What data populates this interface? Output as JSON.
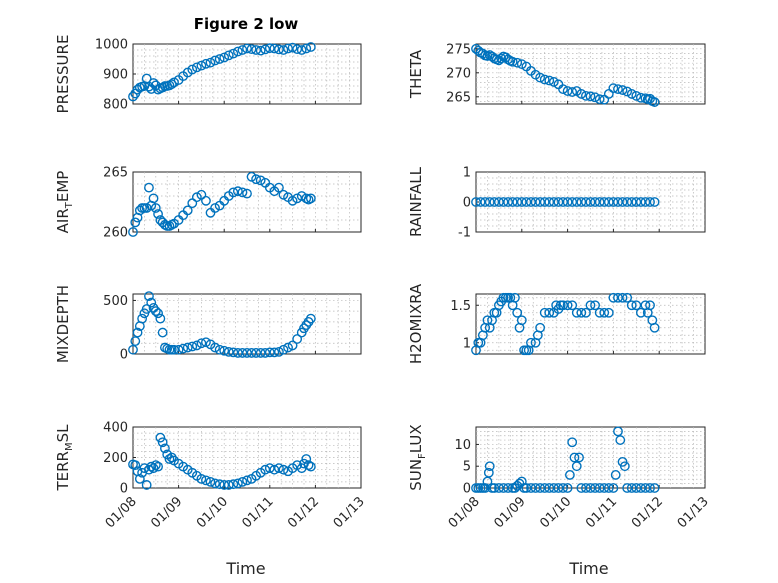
{
  "figure": {
    "title": "Figure 2 low",
    "marker_color": "#0072BD",
    "x_tick_labels": [
      "01/08",
      "01/09",
      "01/10",
      "01/11",
      "01/12",
      "01/13"
    ],
    "xlabel": "Time"
  },
  "chart_data": [
    {
      "id": "pressure",
      "type": "scatter",
      "ylabel": "PRESSURE",
      "xlim": [
        "01/08",
        "01/13"
      ],
      "ylim": [
        800,
        1000
      ],
      "yticks": [
        800,
        900,
        1000
      ],
      "grid": true,
      "x_days": [
        0.0,
        0.05,
        0.1,
        0.15,
        0.2,
        0.25,
        0.3,
        0.35,
        0.4,
        0.45,
        0.5,
        0.55,
        0.6,
        0.65,
        0.7,
        0.75,
        0.8,
        0.85,
        0.9,
        1.0,
        1.1,
        1.2,
        1.3,
        1.4,
        1.5,
        1.6,
        1.7,
        1.8,
        1.9,
        2.0,
        2.1,
        2.2,
        2.3,
        2.4,
        2.5,
        2.6,
        2.7,
        2.8,
        2.9,
        3.0,
        3.1,
        3.2,
        3.3,
        3.4,
        3.5,
        3.6,
        3.7,
        3.8,
        3.9
      ],
      "values": [
        825,
        835,
        848,
        855,
        858,
        860,
        885,
        858,
        850,
        870,
        862,
        848,
        852,
        855,
        860,
        860,
        862,
        866,
        872,
        880,
        893,
        905,
        915,
        922,
        928,
        934,
        938,
        945,
        950,
        955,
        962,
        968,
        975,
        980,
        985,
        983,
        980,
        978,
        982,
        986,
        985,
        982,
        980,
        985,
        988,
        983,
        980,
        985,
        990
      ]
    },
    {
      "id": "theta",
      "type": "scatter",
      "ylabel": "THETA",
      "xlim": [
        "01/08",
        "01/13"
      ],
      "ylim": [
        263.5,
        276
      ],
      "yticks": [
        265,
        270,
        275
      ],
      "grid": true,
      "x_days": [
        0.0,
        0.05,
        0.1,
        0.15,
        0.2,
        0.25,
        0.3,
        0.35,
        0.4,
        0.45,
        0.5,
        0.55,
        0.6,
        0.65,
        0.7,
        0.75,
        0.8,
        0.9,
        1.0,
        1.1,
        1.2,
        1.3,
        1.4,
        1.5,
        1.6,
        1.7,
        1.8,
        1.9,
        2.0,
        2.1,
        2.2,
        2.3,
        2.4,
        2.5,
        2.6,
        2.7,
        2.8,
        2.9,
        3.0,
        3.1,
        3.2,
        3.3,
        3.4,
        3.5,
        3.6,
        3.7,
        3.75,
        3.8,
        3.85,
        3.9
      ],
      "values": [
        275,
        274.6,
        274.2,
        274,
        273.6,
        273.5,
        273.7,
        273.4,
        273,
        272.8,
        272.6,
        273,
        273.4,
        273.2,
        272.8,
        272.5,
        272.3,
        272.1,
        271.8,
        271.3,
        270.4,
        269.6,
        269,
        268.6,
        268.4,
        268.1,
        267.6,
        266.6,
        266.2,
        266,
        266.2,
        265.6,
        265.2,
        265.1,
        264.9,
        264.5,
        264.4,
        265.6,
        266.8,
        266.6,
        266.4,
        266.1,
        265.6,
        265.2,
        264.8,
        264.7,
        264.5,
        264.6,
        264.1,
        263.9
      ]
    },
    {
      "id": "air_temp",
      "type": "scatter",
      "ylabel": "AIR_TEMP",
      "xlim": [
        "01/08",
        "01/13"
      ],
      "ylim": [
        260,
        265
      ],
      "yticks": [
        260,
        265
      ],
      "grid": true,
      "x_days": [
        0.0,
        0.05,
        0.1,
        0.15,
        0.2,
        0.25,
        0.3,
        0.35,
        0.4,
        0.45,
        0.5,
        0.55,
        0.6,
        0.65,
        0.7,
        0.75,
        0.8,
        0.85,
        0.9,
        1.0,
        1.1,
        1.2,
        1.3,
        1.4,
        1.5,
        1.6,
        1.7,
        1.8,
        1.9,
        2.0,
        2.1,
        2.2,
        2.3,
        2.4,
        2.5,
        2.6,
        2.7,
        2.8,
        2.9,
        3.0,
        3.1,
        3.2,
        3.3,
        3.4,
        3.5,
        3.6,
        3.7,
        3.8,
        3.85,
        3.9
      ],
      "values": [
        260,
        260.8,
        261.2,
        261.8,
        262,
        262,
        262,
        263.7,
        262.2,
        262.8,
        262,
        261.5,
        261,
        260.8,
        260.6,
        260.5,
        260.5,
        260.6,
        260.7,
        261,
        261.4,
        261.8,
        262.4,
        262.9,
        263.1,
        262.6,
        261.6,
        262,
        262.2,
        262.6,
        263,
        263.3,
        263.4,
        263.3,
        263.2,
        264.6,
        264.4,
        264.3,
        264.1,
        263.7,
        263.4,
        263.7,
        263.1,
        262.9,
        262.6,
        262.8,
        263,
        262.8,
        262.7,
        262.8
      ]
    },
    {
      "id": "rainfall",
      "type": "scatter",
      "ylabel": "RAINFALL",
      "xlim": [
        "01/08",
        "01/13"
      ],
      "ylim": [
        -1,
        1
      ],
      "yticks": [
        -1,
        0,
        1
      ],
      "grid": true,
      "x_days": [
        0.0,
        0.1,
        0.2,
        0.3,
        0.4,
        0.5,
        0.6,
        0.7,
        0.8,
        0.9,
        1.0,
        1.1,
        1.2,
        1.3,
        1.4,
        1.5,
        1.6,
        1.7,
        1.8,
        1.9,
        2.0,
        2.1,
        2.2,
        2.3,
        2.4,
        2.5,
        2.6,
        2.7,
        2.8,
        2.9,
        3.0,
        3.1,
        3.2,
        3.3,
        3.4,
        3.5,
        3.6,
        3.7,
        3.8,
        3.9
      ],
      "values": [
        0,
        0,
        0,
        0,
        0,
        0,
        0,
        0,
        0,
        0,
        0,
        0,
        0,
        0,
        0,
        0,
        0,
        0,
        0,
        0,
        0,
        0,
        0,
        0,
        0,
        0,
        0,
        0,
        0,
        0,
        0,
        0,
        0,
        0,
        0,
        0,
        0,
        0,
        0,
        0
      ]
    },
    {
      "id": "mixdepth",
      "type": "scatter",
      "ylabel": "MIXDEPTH",
      "xlim": [
        "01/08",
        "01/13"
      ],
      "ylim": [
        0,
        560
      ],
      "yticks": [
        0,
        500
      ],
      "grid": true,
      "x_days": [
        0.0,
        0.05,
        0.1,
        0.15,
        0.2,
        0.25,
        0.3,
        0.35,
        0.4,
        0.45,
        0.5,
        0.55,
        0.6,
        0.65,
        0.7,
        0.75,
        0.8,
        0.85,
        0.9,
        1.0,
        1.1,
        1.2,
        1.3,
        1.4,
        1.5,
        1.6,
        1.7,
        1.8,
        1.9,
        2.0,
        2.1,
        2.2,
        2.3,
        2.4,
        2.5,
        2.6,
        2.7,
        2.8,
        2.9,
        3.0,
        3.1,
        3.2,
        3.3,
        3.4,
        3.5,
        3.6,
        3.7,
        3.75,
        3.8,
        3.85,
        3.9
      ],
      "values": [
        40,
        120,
        200,
        260,
        330,
        380,
        420,
        540,
        480,
        430,
        400,
        380,
        330,
        200,
        60,
        50,
        40,
        40,
        40,
        40,
        50,
        60,
        70,
        80,
        100,
        110,
        90,
        60,
        40,
        30,
        20,
        15,
        10,
        10,
        10,
        10,
        10,
        10,
        10,
        15,
        15,
        20,
        40,
        60,
        80,
        140,
        200,
        240,
        270,
        300,
        330
      ]
    },
    {
      "id": "h2omixra",
      "type": "scatter",
      "ylabel": "H2OMIXRA",
      "xlim": [
        "01/08",
        "01/13"
      ],
      "ylim": [
        0.85,
        1.65
      ],
      "yticks": [
        1,
        1.5
      ],
      "grid": true,
      "x_days": [
        0.0,
        0.05,
        0.1,
        0.15,
        0.2,
        0.25,
        0.3,
        0.35,
        0.4,
        0.45,
        0.5,
        0.55,
        0.6,
        0.65,
        0.7,
        0.75,
        0.8,
        0.85,
        0.9,
        0.95,
        1.0,
        1.05,
        1.1,
        1.15,
        1.2,
        1.3,
        1.35,
        1.4,
        1.5,
        1.6,
        1.7,
        1.75,
        1.8,
        1.85,
        1.9,
        2.0,
        2.1,
        2.2,
        2.3,
        2.4,
        2.5,
        2.6,
        2.7,
        2.8,
        2.9,
        3.0,
        3.1,
        3.2,
        3.3,
        3.4,
        3.5,
        3.6,
        3.7,
        3.75,
        3.8,
        3.85,
        3.9
      ],
      "values": [
        0.9,
        1.0,
        1.0,
        1.1,
        1.2,
        1.3,
        1.2,
        1.3,
        1.4,
        1.4,
        1.5,
        1.55,
        1.6,
        1.6,
        1.6,
        1.6,
        1.5,
        1.6,
        1.4,
        1.2,
        1.3,
        0.9,
        0.9,
        0.9,
        1.0,
        1.0,
        1.1,
        1.2,
        1.4,
        1.4,
        1.4,
        1.5,
        1.45,
        1.5,
        1.5,
        1.5,
        1.5,
        1.4,
        1.4,
        1.4,
        1.5,
        1.5,
        1.4,
        1.4,
        1.4,
        1.6,
        1.6,
        1.6,
        1.6,
        1.5,
        1.5,
        1.4,
        1.5,
        1.4,
        1.5,
        1.3,
        1.2
      ]
    },
    {
      "id": "terr_msl",
      "type": "scatter",
      "ylabel": "TERR_MSL",
      "xlim": [
        "01/08",
        "01/13"
      ],
      "ylim": [
        0,
        400
      ],
      "yticks": [
        0,
        200,
        400
      ],
      "grid": true,
      "x_days": [
        0.0,
        0.05,
        0.1,
        0.15,
        0.2,
        0.25,
        0.3,
        0.35,
        0.4,
        0.45,
        0.5,
        0.55,
        0.6,
        0.65,
        0.7,
        0.75,
        0.8,
        0.85,
        0.9,
        1.0,
        1.1,
        1.2,
        1.3,
        1.4,
        1.5,
        1.6,
        1.7,
        1.8,
        1.9,
        2.0,
        2.1,
        2.2,
        2.3,
        2.4,
        2.5,
        2.6,
        2.7,
        2.8,
        2.9,
        3.0,
        3.1,
        3.2,
        3.3,
        3.4,
        3.5,
        3.6,
        3.7,
        3.75,
        3.8,
        3.85,
        3.9
      ],
      "values": [
        155,
        150,
        110,
        60,
        100,
        130,
        20,
        120,
        140,
        130,
        150,
        140,
        330,
        300,
        260,
        220,
        190,
        200,
        180,
        160,
        140,
        120,
        100,
        80,
        60,
        50,
        40,
        30,
        25,
        20,
        20,
        25,
        30,
        40,
        50,
        60,
        80,
        100,
        120,
        130,
        120,
        130,
        120,
        110,
        130,
        150,
        130,
        160,
        190,
        150,
        140
      ]
    },
    {
      "id": "sun_flux",
      "type": "scatter",
      "ylabel": "SUN_FLUX",
      "xlim": [
        "01/08",
        "01/13"
      ],
      "ylim": [
        0,
        14
      ],
      "yticks": [
        0,
        5,
        10
      ],
      "grid": true,
      "x_days": [
        0.0,
        0.05,
        0.1,
        0.15,
        0.2,
        0.25,
        0.28,
        0.3,
        0.35,
        0.4,
        0.5,
        0.6,
        0.7,
        0.8,
        0.85,
        0.9,
        0.95,
        1.0,
        1.05,
        1.1,
        1.2,
        1.3,
        1.4,
        1.5,
        1.6,
        1.7,
        1.8,
        1.9,
        2.0,
        2.05,
        2.1,
        2.15,
        2.2,
        2.25,
        2.3,
        2.4,
        2.5,
        2.6,
        2.7,
        2.8,
        2.9,
        3.0,
        3.05,
        3.1,
        3.15,
        3.2,
        3.25,
        3.3,
        3.4,
        3.5,
        3.6,
        3.7,
        3.8,
        3.9
      ],
      "values": [
        0,
        0,
        0,
        0,
        0,
        1.5,
        3.5,
        5.0,
        0,
        0,
        0,
        0,
        0,
        0,
        0,
        0.5,
        1.0,
        1.5,
        0,
        0,
        0,
        0,
        0,
        0,
        0,
        0,
        0,
        0,
        0,
        3.0,
        10.5,
        7.0,
        5.0,
        7.0,
        0,
        0,
        0,
        0,
        0,
        0,
        0,
        0,
        3.0,
        13.0,
        11.0,
        6.0,
        5.0,
        0,
        0,
        0,
        0,
        0,
        0,
        0
      ]
    }
  ]
}
